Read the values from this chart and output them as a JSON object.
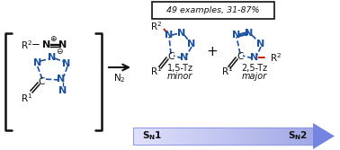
{
  "blue": "#1a50a0",
  "red": "#cc2200",
  "black": "#111111",
  "gray_arrow": "#8899cc",
  "bg": "#ffffff",
  "box_text": "49 examples, 31-87%",
  "label_15": "1,5-Tz",
  "label_minor": "minor",
  "label_25": "2,5-Tz",
  "label_major": "major",
  "sn1": "S",
  "sn2": "S"
}
